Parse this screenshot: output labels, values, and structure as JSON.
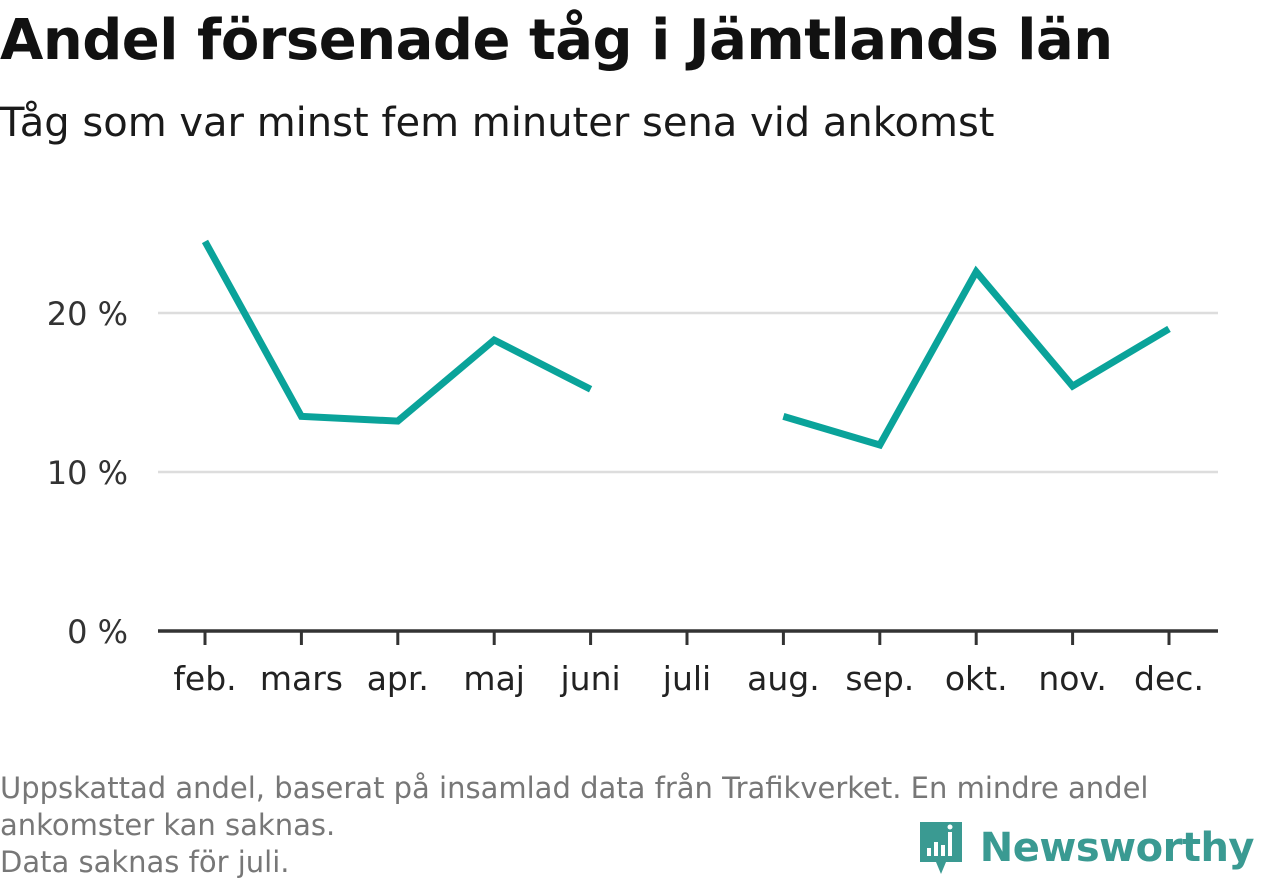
{
  "title": "Andel försenade tåg i Jämtlands län",
  "subtitle": "Tåg som var minst fem minuter sena vid ankomst",
  "footnote": {
    "line1": "Uppskattad andel, baserat på insamlad data från Trafikverket. En mindre andel ankomster kan saknas.",
    "line2": "Data saknas för juli."
  },
  "brand": {
    "name": "Newsworthy",
    "icon": "newsworthy-logo-icon"
  },
  "colors": {
    "line": "#0aa39a",
    "grid": "#dddddd",
    "axis": "#333333",
    "brand": "#3a9a92"
  },
  "chart_data": {
    "type": "line",
    "title": "Andel försenade tåg i Jämtlands län",
    "subtitle": "Tåg som var minst fem minuter sena vid ankomst",
    "xlabel": "",
    "ylabel": "",
    "categories": [
      "feb.",
      "mars",
      "apr.",
      "maj",
      "juni",
      "juli",
      "aug.",
      "sep.",
      "okt.",
      "nov.",
      "dec."
    ],
    "series": [
      {
        "values": [
          24.5,
          13.5,
          13.2,
          18.3,
          15.2,
          null,
          13.5,
          11.7,
          22.6,
          15.4,
          19.0
        ]
      }
    ],
    "ylim": [
      0,
      25
    ],
    "yticks": [
      0,
      10,
      20
    ],
    "ytick_labels": [
      "0 %",
      "10 %",
      "20 %"
    ],
    "grid": true,
    "legend": "none"
  }
}
